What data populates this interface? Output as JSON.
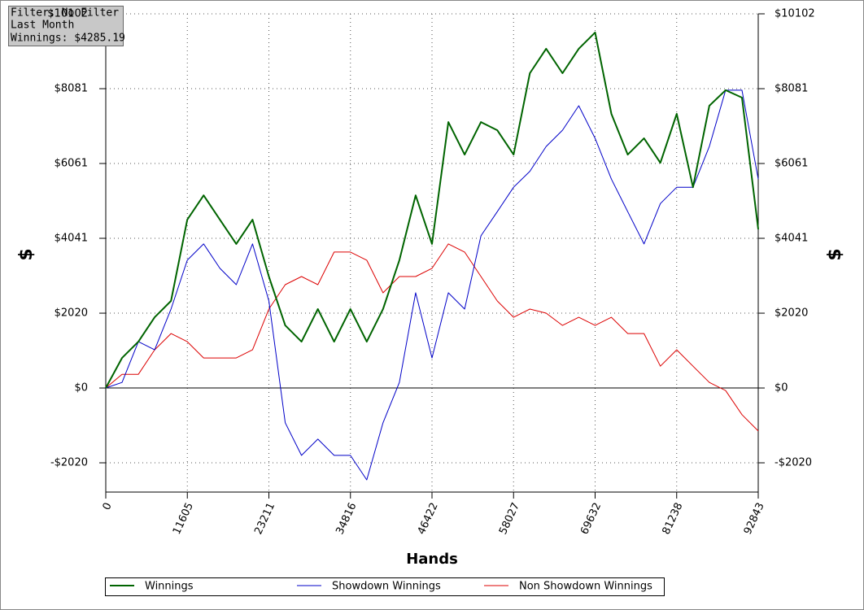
{
  "chart_data": {
    "type": "line",
    "info": [
      "Filter: No Filter",
      "Last Month",
      "Winnings: $4285.19"
    ],
    "xlabel": "Hands",
    "ylabel": "$",
    "y2label": "$",
    "x": [
      0,
      2321,
      4642,
      6963,
      9284,
      11605,
      13926,
      16247,
      18568,
      20889,
      23211,
      25532,
      27853,
      30174,
      32495,
      34816,
      37137,
      39458,
      41779,
      44100,
      46422,
      48743,
      51064,
      53385,
      55706,
      58027,
      60348,
      62669,
      64990,
      67311,
      69632,
      71953,
      74274,
      76595,
      78916,
      81238,
      83559,
      85880,
      88201,
      90522,
      92843
    ],
    "series": [
      {
        "name": "Winnings",
        "color": "#006400",
        "width": 2,
        "values": [
          0,
          810,
          1250,
          1910,
          2350,
          4545,
          5200,
          4545,
          3890,
          4545,
          3010,
          1690,
          1250,
          2130,
          1250,
          2130,
          1250,
          2130,
          3450,
          5200,
          3890,
          7180,
          6300,
          7180,
          6960,
          6300,
          8500,
          9160,
          8500,
          9160,
          9600,
          7400,
          6300,
          6740,
          6080,
          7400,
          5420,
          7620,
          8040,
          7840,
          4285
        ]
      },
      {
        "name": "Showdown Winnings",
        "color": "#0000c8",
        "width": 1,
        "values": [
          0,
          150,
          1250,
          1030,
          2130,
          3450,
          3890,
          3230,
          2790,
          3890,
          2350,
          -940,
          -1820,
          -1380,
          -1820,
          -1820,
          -2480,
          -940,
          150,
          2570,
          810,
          2570,
          2130,
          4110,
          4760,
          5420,
          5850,
          6520,
          6960,
          7620,
          6740,
          5640,
          4760,
          3890,
          4980,
          5420,
          5420,
          6520,
          8040,
          8040,
          5640
        ]
      },
      {
        "name": "Non Showdown Winnings",
        "color": "#dc0000",
        "width": 1,
        "values": [
          0,
          370,
          370,
          1030,
          1470,
          1250,
          810,
          810,
          810,
          1030,
          2130,
          2790,
          3010,
          2790,
          3670,
          3670,
          3450,
          2570,
          3010,
          3010,
          3230,
          3890,
          3670,
          3010,
          2350,
          1910,
          2130,
          2020,
          1690,
          1910,
          1690,
          1910,
          1470,
          1470,
          590,
          1030,
          590,
          150,
          -70,
          -720,
          -1160
        ]
      }
    ],
    "xlim": [
      0,
      92843
    ],
    "xticks": [
      0,
      11605,
      23211,
      34816,
      46422,
      58027,
      69632,
      81238,
      92843
    ],
    "ylim": [
      -2810,
      10102
    ],
    "yticks": [
      {
        "value": -2020,
        "label": "-$2020"
      },
      {
        "value": 0,
        "label": "$0"
      },
      {
        "value": 2020,
        "label": "$2020"
      },
      {
        "value": 4041,
        "label": "$4041"
      },
      {
        "value": 6061,
        "label": "$6061"
      },
      {
        "value": 8081,
        "label": "$8081"
      },
      {
        "value": 10102,
        "label": "$10102"
      }
    ],
    "y2lim": [
      -2810,
      10102
    ],
    "y2ticks": [
      {
        "value": -2020,
        "label": "-$2020"
      },
      {
        "value": 0,
        "label": "$0"
      },
      {
        "value": 2020,
        "label": "$2020"
      },
      {
        "value": 4041,
        "label": "$4041"
      },
      {
        "value": 6061,
        "label": "$6061"
      },
      {
        "value": 8081,
        "label": "$8081"
      },
      {
        "value": 10102,
        "label": "$10102"
      }
    ],
    "grid": true,
    "legend": "bottom"
  }
}
